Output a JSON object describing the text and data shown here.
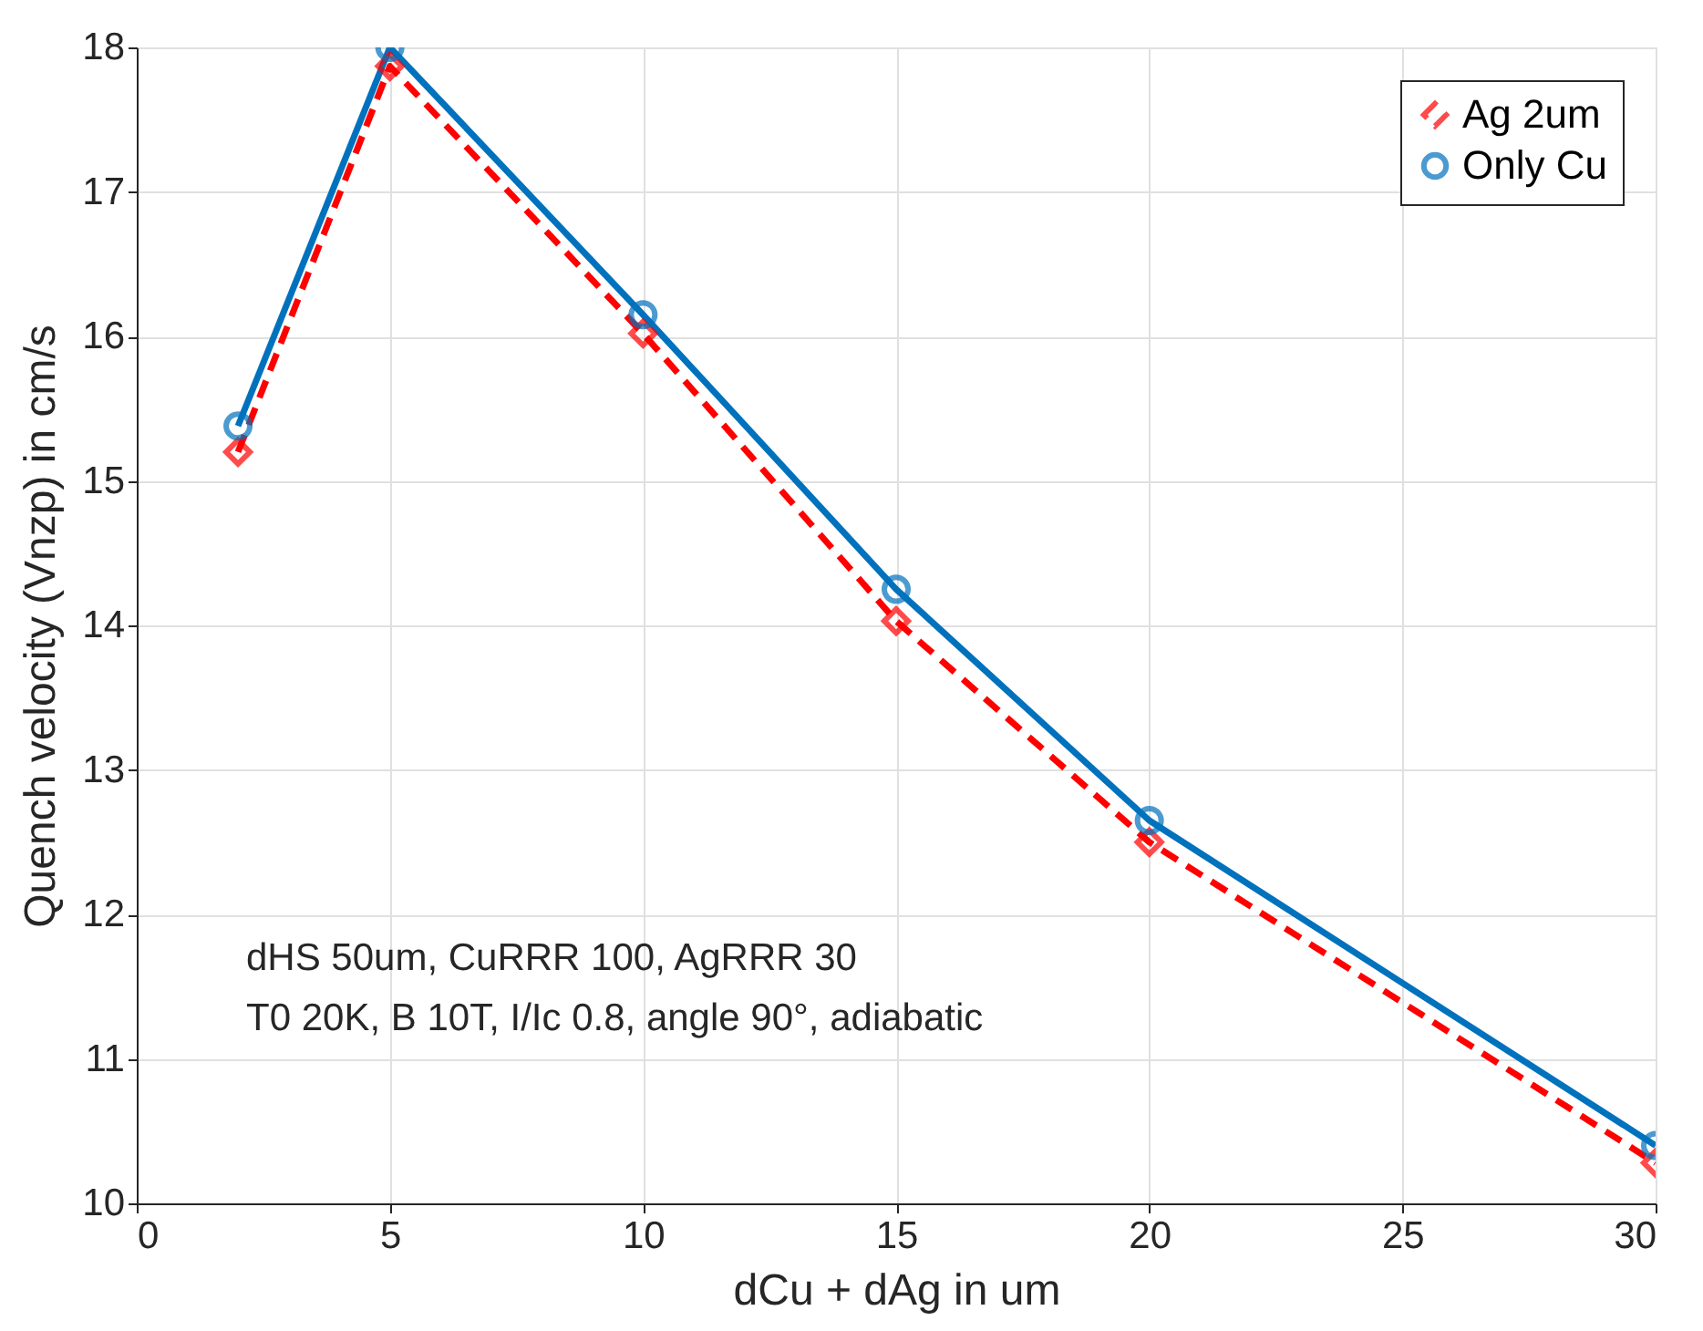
{
  "chart_data": {
    "type": "line",
    "xlabel": "dCu + dAg in um",
    "ylabel": "Quench velocity (Vnzp) in cm/s",
    "x": [
      2,
      5,
      10,
      15,
      20,
      30
    ],
    "xlim": [
      0,
      30
    ],
    "xticks": [
      0,
      5,
      10,
      15,
      20,
      25,
      30
    ],
    "ylim": [
      10,
      18
    ],
    "yticks": [
      10,
      11,
      12,
      13,
      14,
      15,
      16,
      17,
      18
    ],
    "grid": true,
    "legend": "top right",
    "series": [
      {
        "name": "Ag 2um",
        "color": "#ff0000",
        "values": [
          15.2,
          17.87,
          16.02,
          14.03,
          12.5,
          10.28
        ],
        "marker": "diamond",
        "line_style": "dashed"
      },
      {
        "name": "Only Cu",
        "color": "#0072bd",
        "values": [
          15.38,
          18.0,
          16.15,
          14.25,
          12.65,
          10.4
        ],
        "marker": "circle",
        "line_style": "solid"
      }
    ],
    "annotations": [
      "dHS 50um, CuRRR 100, AgRRR 30",
      "T0 20K, B 10T, I/Ic 0.8, angle 90°, adiabatic"
    ]
  }
}
